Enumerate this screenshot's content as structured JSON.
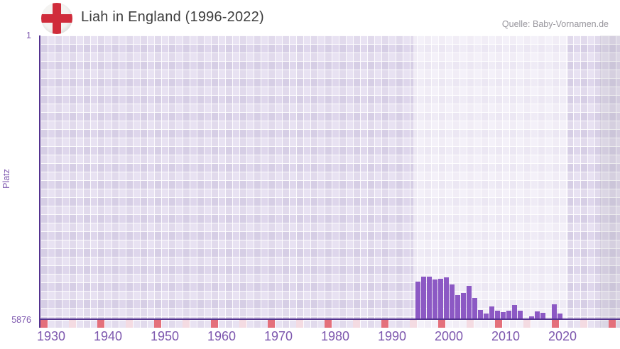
{
  "header": {
    "title": "Liah in England (1996-2022)",
    "source": "Quelle: Baby-Vornamen.de",
    "flag_icon": "england-flag-icon"
  },
  "y_axis": {
    "label": "Platz",
    "top_tick": "1",
    "bottom_tick": "5876"
  },
  "chart_data": {
    "type": "bar",
    "title": "Liah in England (1996-2022)",
    "xlabel": "",
    "ylabel": "Platz",
    "y_inverted": true,
    "ylim": [
      1,
      5876
    ],
    "x_axis_range": [
      1929,
      2032
    ],
    "x_tick_labels": [
      "1930",
      "1940",
      "1950",
      "1960",
      "1970",
      "1980",
      "1990",
      "2000",
      "2010",
      "2020"
    ],
    "decade_tick_years": [
      1930,
      1940,
      1950,
      1960,
      1970,
      1980,
      1990,
      2000,
      2010,
      2020,
      2030
    ],
    "half_decade_tick_years": [
      1935,
      1945,
      1955,
      1965,
      1975,
      1985,
      1995,
      2005,
      2015,
      2025
    ],
    "grid": "checkered",
    "legend": "none",
    "highlight_band_years": [
      1995.5,
      2022.5
    ],
    "categories": [
      1996,
      1997,
      1998,
      1999,
      2000,
      2001,
      2002,
      2003,
      2004,
      2005,
      2006,
      2007,
      2008,
      2009,
      2010,
      2011,
      2012,
      2013,
      2014,
      2015,
      2016,
      2017,
      2018,
      2019,
      2020,
      2021,
      2022
    ],
    "values": [
      5110,
      5010,
      5000,
      5070,
      5045,
      5025,
      5165,
      5385,
      5340,
      5205,
      5450,
      5705,
      5775,
      5625,
      5720,
      5745,
      5715,
      5600,
      5720,
      null,
      5825,
      5730,
      5760,
      null,
      5575,
      5775,
      null
    ]
  },
  "colors": {
    "bar": "#8c59c4",
    "axis_line": "#53328f",
    "axis_label": "#7d57ae",
    "title_text": "#3d3d3d",
    "source_text": "#98969d",
    "decade_tick": "#e4707b",
    "half_decade_tick": "#f4dbe2",
    "flag_bg": "#f4f3f1",
    "flag_cross": "#d02c3b"
  }
}
